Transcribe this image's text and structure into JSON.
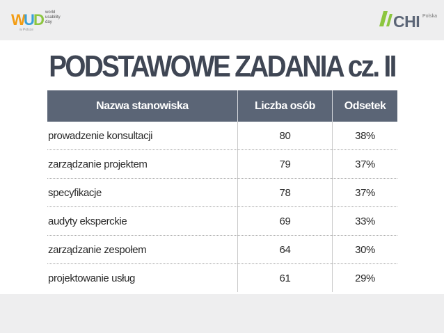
{
  "header": {
    "wud_logo_text": "WUD",
    "wud_lines": [
      "world",
      "usability",
      "day"
    ],
    "chi_logo_text": "CHI",
    "chi_sub": "Polska"
  },
  "slide": {
    "title": "PODSTAWOWE ZADANIA cz. II"
  },
  "table": {
    "columns": [
      "Nazwa stanowiska",
      "Liczba osób",
      "Odsetek"
    ],
    "rows": [
      [
        "prowadzenie konsultacji",
        "80",
        "38%"
      ],
      [
        "zarządzanie projektem",
        "79",
        "37%"
      ],
      [
        "specyfikacje",
        "78",
        "37%"
      ],
      [
        "audyty eksperckie",
        "69",
        "33%"
      ],
      [
        "zarządzanie zespołem",
        "64",
        "30%"
      ],
      [
        "projektowanie usług",
        "61",
        "29%"
      ]
    ]
  },
  "colors": {
    "header_bg": "#5b6576",
    "title": "#3f4654",
    "band": "#eeeeef",
    "chi_green": "#8cc63f"
  }
}
